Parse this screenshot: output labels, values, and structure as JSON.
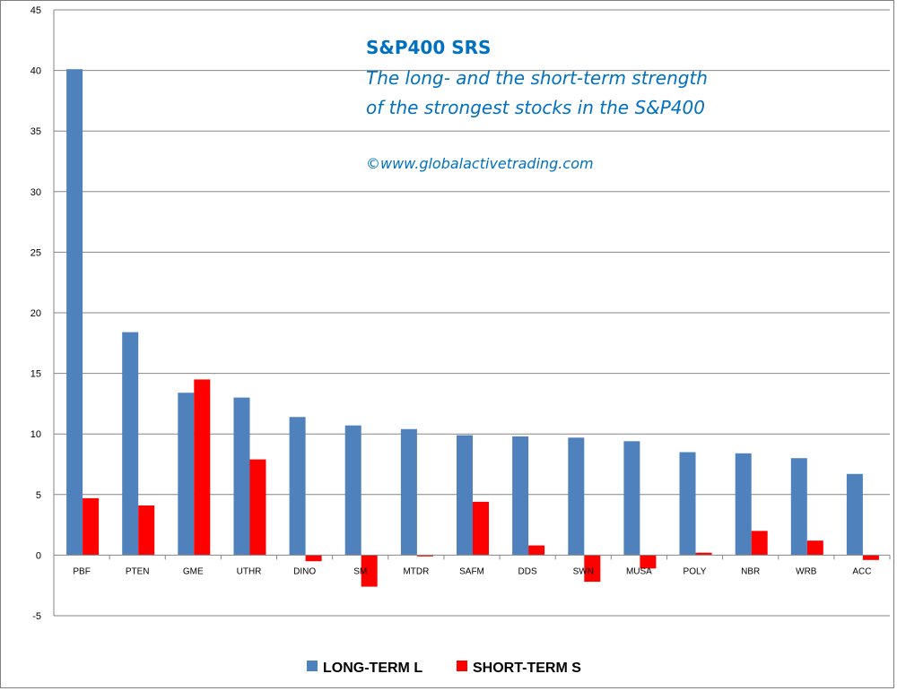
{
  "chart_data": {
    "type": "bar",
    "title": "S&P400 SRS",
    "subtitle_lines": [
      "The long- and the short-term strength",
      "of the  strongest stocks in the S&P400"
    ],
    "copyright": "©www.globalactivetrading.com",
    "categories": [
      "PBF",
      "PTEN",
      "GME",
      "UTHR",
      "DINO",
      "SM",
      "MTDR",
      "SAFM",
      "DDS",
      "SWN",
      "MUSA",
      "POLY",
      "NBR",
      "WRB",
      "ACC"
    ],
    "series": [
      {
        "name": "LONG-TERM  L",
        "color": "#4f81bd",
        "values": [
          40.1,
          18.4,
          13.4,
          13.0,
          11.4,
          10.7,
          10.4,
          9.9,
          9.8,
          9.7,
          9.4,
          8.5,
          8.4,
          8.0,
          6.7
        ]
      },
      {
        "name": "SHORT-TERM  S",
        "color": "#ff0000",
        "values": [
          4.7,
          4.1,
          14.5,
          7.9,
          -0.5,
          -2.6,
          -0.1,
          4.4,
          0.8,
          -2.2,
          -1.1,
          0.2,
          2.0,
          1.2,
          -0.4
        ]
      }
    ],
    "ylim": [
      -5,
      45
    ],
    "yticks": [
      -5,
      0,
      5,
      10,
      15,
      20,
      25,
      30,
      35,
      40,
      45
    ],
    "grid": true,
    "legend_position": "bottom"
  }
}
